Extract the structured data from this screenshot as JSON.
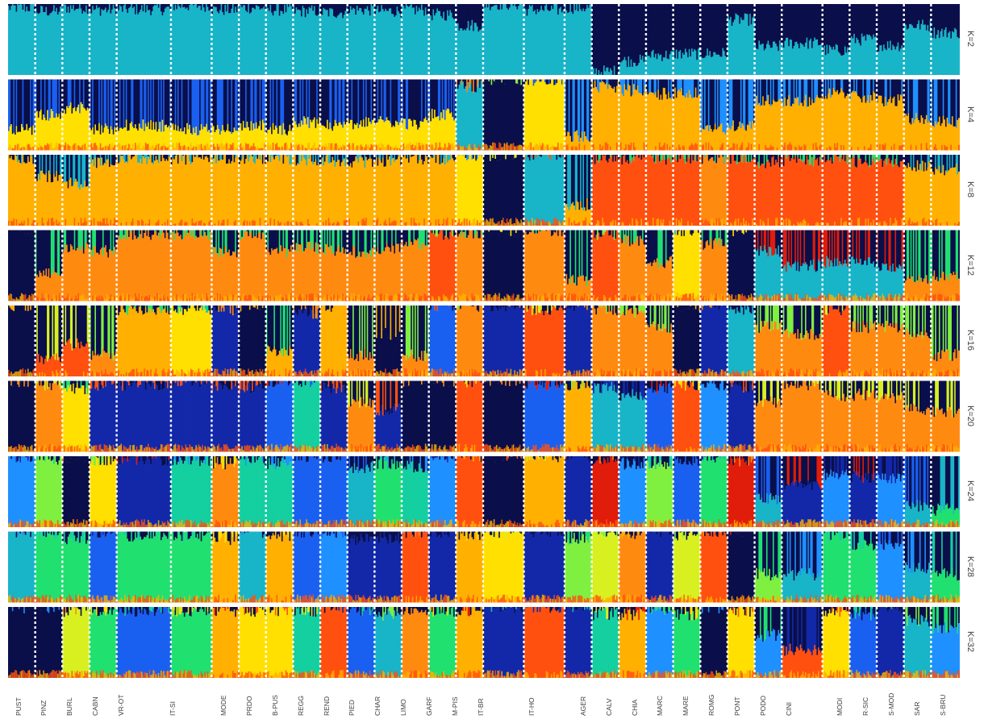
{
  "chart_data": {
    "type": "stacked-bar",
    "description_of_marks": "ADMIXTURE ancestry proportions per individual, grouped by breed, for increasing K",
    "k_labels": [
      "K=2",
      "K=4",
      "K=8",
      "K=12",
      "K=16",
      "K=20",
      "K=24",
      "K=28",
      "K=32"
    ],
    "breed_labels": [
      "PUST",
      "PINZ",
      "BURL",
      "CABN",
      "VR-OT",
      "",
      "IT-SI",
      "",
      "MODE",
      "PRDO",
      "B-PUS",
      "REGG",
      "REND",
      "PIED",
      "CHAR",
      "LIMO",
      "GARF",
      "M-PIS",
      "IT-BR",
      "",
      "IT-HO",
      "",
      "AGER",
      "CALV",
      "CHIA",
      "MARC",
      "MARE",
      "ROMG",
      "PONT",
      "PODO",
      "CINI",
      "",
      "MODI",
      "R-SIC",
      "S-MOD",
      "SAR",
      "S-BRU"
    ],
    "groups": [
      {
        "id": "PUST",
        "n": 1
      },
      {
        "id": "PINZ",
        "n": 1
      },
      {
        "id": "BURL",
        "n": 1
      },
      {
        "id": "CABN",
        "n": 1
      },
      {
        "id": "VR-OT",
        "n": 2
      },
      {
        "id": "IT-SI",
        "n": 1.5
      },
      {
        "id": "MODE",
        "n": 1
      },
      {
        "id": "PRDO",
        "n": 1
      },
      {
        "id": "B-PUS",
        "n": 1
      },
      {
        "id": "REGG",
        "n": 1
      },
      {
        "id": "REND",
        "n": 1
      },
      {
        "id": "PIED",
        "n": 1
      },
      {
        "id": "CHAR",
        "n": 1
      },
      {
        "id": "LIMO",
        "n": 1
      },
      {
        "id": "GARF",
        "n": 1
      },
      {
        "id": "M-PIS",
        "n": 1
      },
      {
        "id": "IT-BR",
        "n": 1.5
      },
      {
        "id": "IT-HO",
        "n": 1.5
      },
      {
        "id": "AGER",
        "n": 1
      },
      {
        "id": "CALV",
        "n": 1
      },
      {
        "id": "CHIA",
        "n": 1
      },
      {
        "id": "MARC",
        "n": 1
      },
      {
        "id": "MARE",
        "n": 1
      },
      {
        "id": "ROMG",
        "n": 1
      },
      {
        "id": "PONT",
        "n": 1
      },
      {
        "id": "PODO",
        "n": 1
      },
      {
        "id": "CINI",
        "n": 1.5
      },
      {
        "id": "MODI",
        "n": 1
      },
      {
        "id": "R-SIC",
        "n": 1
      },
      {
        "id": "S-MOD",
        "n": 1
      },
      {
        "id": "SAR",
        "n": 1
      },
      {
        "id": "S-BRU",
        "n": 1
      }
    ],
    "palette": [
      "#0a0f4a",
      "#1228a8",
      "#1a60f0",
      "#1e90ff",
      "#18b4c8",
      "#14cfa0",
      "#20e070",
      "#80f040",
      "#d8f020",
      "#ffe000",
      "#ffb000",
      "#ff8a10",
      "#ff5010",
      "#e01c0a"
    ],
    "panels": [
      {
        "k": "K=2",
        "groups": [
          [
            4,
            0.95
          ],
          [
            4,
            0.9
          ],
          [
            4,
            0.95
          ],
          [
            4,
            0.92
          ],
          [
            4,
            0.93
          ],
          [
            4,
            0.98
          ],
          [
            4,
            0.92
          ],
          [
            4,
            0.95
          ],
          [
            4,
            0.92
          ],
          [
            4,
            0.9
          ],
          [
            4,
            0.88
          ],
          [
            4,
            0.92
          ],
          [
            4,
            0.9
          ],
          [
            4,
            0.92
          ],
          [
            4,
            0.85
          ],
          [
            4,
            0.7
          ],
          [
            4,
            1.0
          ],
          [
            4,
            0.92
          ],
          [
            4,
            0.95
          ],
          [
            4,
            0.05
          ],
          [
            4,
            0.2
          ],
          [
            4,
            0.28
          ],
          [
            4,
            0.3
          ],
          [
            4,
            0.3
          ],
          [
            4,
            0.78
          ],
          [
            4,
            0.4
          ],
          [
            4,
            0.45
          ],
          [
            4,
            0.35
          ],
          [
            4,
            0.5
          ],
          [
            4,
            0.42
          ],
          [
            4,
            0.7
          ],
          [
            4,
            0.6
          ]
        ]
      },
      {
        "k": "K=4",
        "groups": [
          [
            9,
            0.3
          ],
          [
            9,
            0.5
          ],
          [
            9,
            0.6
          ],
          [
            9,
            0.3
          ],
          [
            9,
            0.35
          ],
          [
            9,
            0.3
          ],
          [
            9,
            0.3
          ],
          [
            9,
            0.35
          ],
          [
            9,
            0.3
          ],
          [
            9,
            0.4
          ],
          [
            9,
            0.35
          ],
          [
            9,
            0.38
          ],
          [
            9,
            0.4
          ],
          [
            9,
            0.38
          ],
          [
            9,
            0.5
          ],
          [
            4,
            0.9
          ],
          [
            0,
            1.0
          ],
          [
            9,
            1.0
          ],
          [
            10,
            0.2
          ],
          [
            10,
            0.9
          ],
          [
            10,
            0.85
          ],
          [
            10,
            0.8
          ],
          [
            10,
            0.8
          ],
          [
            10,
            0.3
          ],
          [
            10,
            0.35
          ],
          [
            10,
            0.7
          ],
          [
            10,
            0.7
          ],
          [
            10,
            0.8
          ],
          [
            10,
            0.75
          ],
          [
            10,
            0.7
          ],
          [
            10,
            0.45
          ],
          [
            10,
            0.4
          ]
        ]
      },
      {
        "k": "K=8",
        "groups": [
          [
            10,
            0.95
          ],
          [
            10,
            0.7
          ],
          [
            10,
            0.6
          ],
          [
            10,
            0.9
          ],
          [
            10,
            0.95
          ],
          [
            10,
            0.95
          ],
          [
            10,
            0.95
          ],
          [
            10,
            0.95
          ],
          [
            10,
            0.95
          ],
          [
            10,
            0.93
          ],
          [
            10,
            0.92
          ],
          [
            10,
            0.9
          ],
          [
            10,
            0.92
          ],
          [
            10,
            0.95
          ],
          [
            10,
            0.95
          ],
          [
            9,
            1.0
          ],
          [
            0,
            1.0
          ],
          [
            4,
            1.0
          ],
          [
            10,
            0.3
          ],
          [
            12,
            0.95
          ],
          [
            12,
            0.95
          ],
          [
            12,
            0.95
          ],
          [
            12,
            0.95
          ],
          [
            11,
            0.95
          ],
          [
            12,
            0.95
          ],
          [
            12,
            0.9
          ],
          [
            12,
            0.92
          ],
          [
            12,
            0.95
          ],
          [
            12,
            0.9
          ],
          [
            12,
            0.9
          ],
          [
            10,
            0.85
          ],
          [
            10,
            0.8
          ]
        ]
      },
      {
        "k": "K=12",
        "groups": [
          [
            0,
            1.0
          ],
          [
            11,
            0.4
          ],
          [
            11,
            0.75
          ],
          [
            11,
            0.7
          ],
          [
            11,
            0.95
          ],
          [
            11,
            0.95
          ],
          [
            11,
            0.7
          ],
          [
            11,
            0.9
          ],
          [
            11,
            0.7
          ],
          [
            11,
            0.75
          ],
          [
            11,
            0.72
          ],
          [
            11,
            0.7
          ],
          [
            11,
            0.75
          ],
          [
            11,
            0.8
          ],
          [
            12,
            0.95
          ],
          [
            11,
            0.95
          ],
          [
            0,
            1.0
          ],
          [
            11,
            1.0
          ],
          [
            11,
            0.3
          ],
          [
            12,
            0.95
          ],
          [
            11,
            0.85
          ],
          [
            11,
            0.55
          ],
          [
            9,
            1.0
          ],
          [
            11,
            0.8
          ],
          [
            0,
            1.0
          ],
          [
            4,
            0.7
          ],
          [
            4,
            0.5
          ],
          [
            4,
            0.55
          ],
          [
            4,
            0.55
          ],
          [
            4,
            0.5
          ],
          [
            11,
            0.3
          ],
          [
            11,
            0.35
          ]
        ]
      },
      {
        "k": "K=16",
        "groups": [
          [
            0,
            1.0
          ],
          [
            12,
            0.25
          ],
          [
            12,
            0.45
          ],
          [
            11,
            0.3
          ],
          [
            10,
            0.95
          ],
          [
            9,
            0.95
          ],
          [
            1,
            0.95
          ],
          [
            0,
            1.0
          ],
          [
            10,
            0.35
          ],
          [
            1,
            0.9
          ],
          [
            10,
            1.0
          ],
          [
            11,
            0.3
          ],
          [
            0,
            0.6
          ],
          [
            11,
            0.3
          ],
          [
            2,
            1.0
          ],
          [
            11,
            1.0
          ],
          [
            1,
            1.0
          ],
          [
            12,
            0.95
          ],
          [
            1,
            1.0
          ],
          [
            11,
            0.95
          ],
          [
            11,
            0.9
          ],
          [
            11,
            0.7
          ],
          [
            0,
            1.0
          ],
          [
            1,
            1.0
          ],
          [
            4,
            0.95
          ],
          [
            11,
            0.7
          ],
          [
            11,
            0.6
          ],
          [
            12,
            0.95
          ],
          [
            11,
            0.7
          ],
          [
            11,
            0.7
          ],
          [
            11,
            0.6
          ],
          [
            11,
            0.3
          ]
        ]
      },
      {
        "k": "K=20",
        "groups": [
          [
            0,
            1.0
          ],
          [
            11,
            0.95
          ],
          [
            9,
            0.9
          ],
          [
            1,
            0.95
          ],
          [
            1,
            0.95
          ],
          [
            1,
            1.0
          ],
          [
            1,
            0.95
          ],
          [
            1,
            0.9
          ],
          [
            2,
            1.0
          ],
          [
            5,
            1.0
          ],
          [
            1,
            0.9
          ],
          [
            11,
            0.7
          ],
          [
            1,
            0.6
          ],
          [
            0,
            1.0
          ],
          [
            0,
            1.0
          ],
          [
            12,
            1.0
          ],
          [
            0,
            1.0
          ],
          [
            2,
            0.95
          ],
          [
            10,
            0.95
          ],
          [
            4,
            0.9
          ],
          [
            4,
            0.8
          ],
          [
            2,
            0.9
          ],
          [
            12,
            0.95
          ],
          [
            3,
            0.95
          ],
          [
            1,
            0.9
          ],
          [
            11,
            0.7
          ],
          [
            11,
            0.95
          ],
          [
            11,
            0.8
          ],
          [
            11,
            0.8
          ],
          [
            11,
            0.75
          ],
          [
            11,
            0.6
          ],
          [
            11,
            0.55
          ]
        ]
      },
      {
        "k": "K=24",
        "groups": [
          [
            3,
            1.0
          ],
          [
            7,
            0.95
          ],
          [
            0,
            1.0
          ],
          [
            9,
            0.95
          ],
          [
            1,
            0.95
          ],
          [
            5,
            0.95
          ],
          [
            11,
            0.9
          ],
          [
            5,
            0.95
          ],
          [
            5,
            0.9
          ],
          [
            2,
            1.0
          ],
          [
            2,
            1.0
          ],
          [
            4,
            0.85
          ],
          [
            6,
            0.9
          ],
          [
            5,
            0.85
          ],
          [
            3,
            1.0
          ],
          [
            12,
            1.0
          ],
          [
            0,
            1.0
          ],
          [
            10,
            1.0
          ],
          [
            1,
            1.0
          ],
          [
            13,
            0.95
          ],
          [
            3,
            0.9
          ],
          [
            7,
            0.9
          ],
          [
            2,
            0.95
          ],
          [
            6,
            1.0
          ],
          [
            13,
            0.95
          ],
          [
            4,
            0.4
          ],
          [
            1,
            0.6
          ],
          [
            3,
            0.75
          ],
          [
            1,
            0.7
          ],
          [
            3,
            0.7
          ],
          [
            4,
            0.3
          ],
          [
            6,
            0.25
          ]
        ]
      },
      {
        "k": "K=28",
        "groups": [
          [
            4,
            1.0
          ],
          [
            6,
            0.95
          ],
          [
            6,
            0.9
          ],
          [
            2,
            1.0
          ],
          [
            6,
            0.95
          ],
          [
            6,
            0.95
          ],
          [
            10,
            0.9
          ],
          [
            4,
            1.0
          ],
          [
            10,
            0.95
          ],
          [
            2,
            1.0
          ],
          [
            3,
            1.0
          ],
          [
            1,
            0.9
          ],
          [
            1,
            0.9
          ],
          [
            12,
            1.0
          ],
          [
            1,
            1.0
          ],
          [
            10,
            0.95
          ],
          [
            9,
            1.0
          ],
          [
            1,
            1.0
          ],
          [
            7,
            0.9
          ],
          [
            8,
            1.0
          ],
          [
            11,
            0.95
          ],
          [
            1,
            1.0
          ],
          [
            8,
            0.95
          ],
          [
            12,
            1.0
          ],
          [
            0,
            1.0
          ],
          [
            7,
            0.4
          ],
          [
            4,
            0.4
          ],
          [
            6,
            0.95
          ],
          [
            6,
            0.8
          ],
          [
            3,
            0.8
          ],
          [
            4,
            0.5
          ],
          [
            6,
            0.4
          ]
        ]
      },
      {
        "k": "K=32",
        "groups": [
          [
            0,
            1.0
          ],
          [
            0,
            1.0
          ],
          [
            8,
            0.95
          ],
          [
            6,
            0.95
          ],
          [
            2,
            0.95
          ],
          [
            6,
            0.95
          ],
          [
            10,
            0.95
          ],
          [
            9,
            0.95
          ],
          [
            9,
            0.95
          ],
          [
            5,
            0.95
          ],
          [
            12,
            1.0
          ],
          [
            2,
            0.95
          ],
          [
            4,
            0.9
          ],
          [
            11,
            0.95
          ],
          [
            6,
            0.95
          ],
          [
            10,
            0.95
          ],
          [
            1,
            1.0
          ],
          [
            12,
            1.0
          ],
          [
            1,
            1.0
          ],
          [
            5,
            0.9
          ],
          [
            10,
            0.9
          ],
          [
            3,
            0.95
          ],
          [
            6,
            0.9
          ],
          [
            0,
            1.0
          ],
          [
            9,
            0.95
          ],
          [
            3,
            0.6
          ],
          [
            12,
            0.4
          ],
          [
            9,
            0.95
          ],
          [
            2,
            0.9
          ],
          [
            1,
            1.0
          ],
          [
            4,
            0.8
          ],
          [
            3,
            0.7
          ]
        ]
      }
    ]
  }
}
